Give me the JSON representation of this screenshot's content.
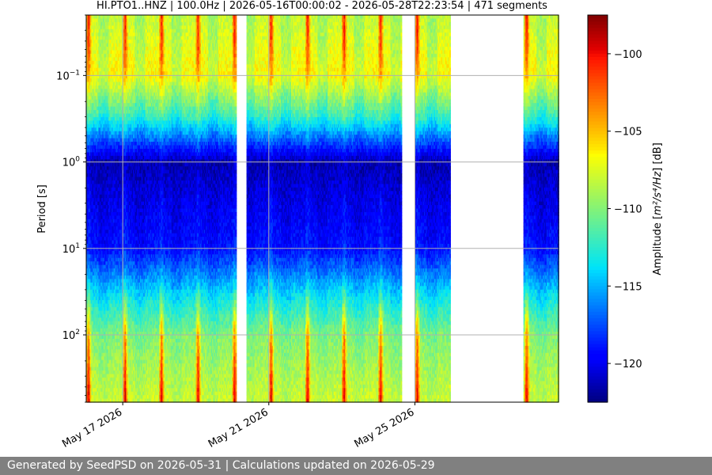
{
  "chart_data": {
    "type": "heatmap",
    "title": "HI.PTO1..HNZ | 100.0Hz | 2026-05-16T00:00:02 - 2026-05-28T22:23:54 | 471 segments",
    "ylabel": "Period [s]",
    "y_scale": "log",
    "y_inverted": true,
    "ylim": [
      0.02,
      600
    ],
    "xlim": [
      "2026-05-16T00:00:02",
      "2026-05-28T22:23:54"
    ],
    "x_ticks": [
      {
        "date": "2026-05-17",
        "label": "May 17 2026"
      },
      {
        "date": "2026-05-21",
        "label": "May 21 2026"
      },
      {
        "date": "2026-05-25",
        "label": "May 25 2026"
      }
    ],
    "y_ticks": [
      {
        "value": 0.1,
        "base": "10",
        "exp": "−1"
      },
      {
        "value": 1,
        "base": "10",
        "exp": "0"
      },
      {
        "value": 10,
        "base": "10",
        "exp": "1"
      },
      {
        "value": 100,
        "base": "10",
        "exp": "2"
      }
    ],
    "grid": true,
    "colormap": "jet",
    "colorbar": {
      "label_prefix": "Amplitude [",
      "label_math": "m²/s⁴/Hz",
      "label_suffix": "] [dB]",
      "range": [
        -122.5,
        -97.5
      ],
      "ticks": [
        {
          "value": -100,
          "label": "−100"
        },
        {
          "value": -105,
          "label": "−105"
        },
        {
          "value": -110,
          "label": "−110"
        },
        {
          "value": -115,
          "label": "−115"
        },
        {
          "value": -120,
          "label": "−120"
        }
      ]
    },
    "data_gaps": [
      {
        "start": "2026-05-20T02:42",
        "end": "2026-05-20T09:01"
      },
      {
        "start": "2026-05-24T15:39",
        "end": "2026-05-24T23:56"
      },
      {
        "start": "2026-05-25T23:28",
        "end": "2026-05-27T23:15"
      }
    ],
    "night_high_amplitude_dates": [
      "2026-05-16",
      "2026-05-17",
      "2026-05-18",
      "2026-05-19",
      "2026-05-20",
      "2026-05-21",
      "2026-05-22",
      "2026-05-23",
      "2026-05-24",
      "2026-05-25",
      "2026-05-28"
    ],
    "amplitude_profile": [
      {
        "period": 0.025,
        "day_db": -108,
        "quiet_db": -110,
        "night_db": -100
      },
      {
        "period": 0.05,
        "day_db": -107,
        "quiet_db": -110,
        "night_db": -101
      },
      {
        "period": 0.1,
        "day_db": -106.5,
        "quiet_db": -109,
        "night_db": -104
      },
      {
        "period": 0.3,
        "day_db": -112,
        "quiet_db": -114,
        "night_db": -111
      },
      {
        "period": 1,
        "day_db": -121.5,
        "quiet_db": -121.5,
        "night_db": -120.5
      },
      {
        "period": 3,
        "day_db": -120,
        "quiet_db": -121,
        "night_db": -119
      },
      {
        "period": 10,
        "day_db": -119,
        "quiet_db": -120,
        "night_db": -118
      },
      {
        "period": 20,
        "day_db": -116,
        "quiet_db": -117,
        "night_db": -115
      },
      {
        "period": 40,
        "day_db": -113,
        "quiet_db": -114.5,
        "night_db": -110
      },
      {
        "period": 100,
        "day_db": -110,
        "quiet_db": -111,
        "night_db": -103
      },
      {
        "period": 500,
        "day_db": -108,
        "quiet_db": -109,
        "night_db": -99
      }
    ]
  },
  "footer": {
    "text": "Generated by SeedPSD on 2026-05-31 | Calculations updated on 2026-05-29"
  }
}
